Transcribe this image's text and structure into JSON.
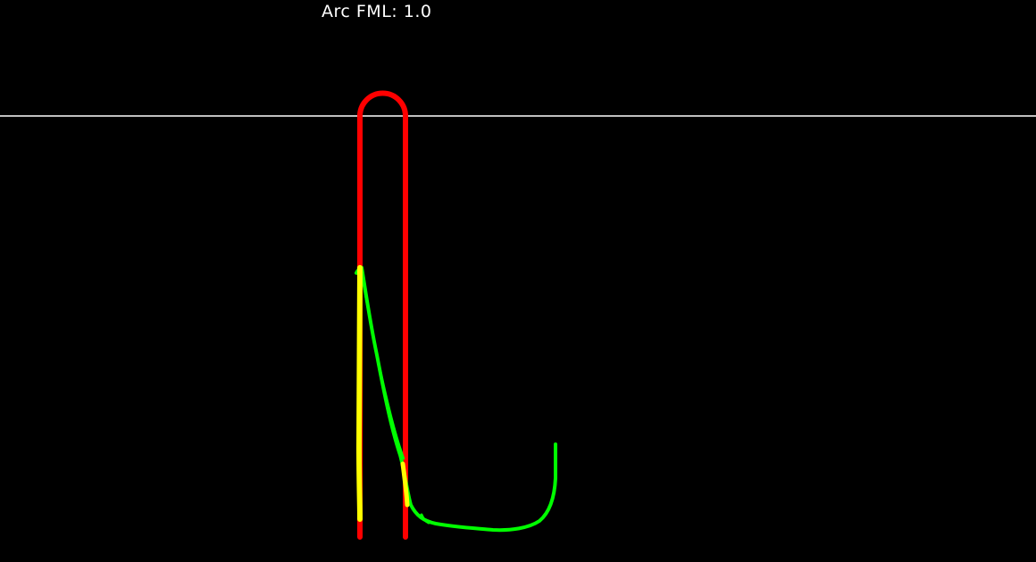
{
  "header": {
    "title": "Arc FML: 1.0"
  },
  "colors": {
    "background": "#000000",
    "reference_line": "#ffffff",
    "probe_outline": "#ff0000",
    "fitted_curve": "#00ff00",
    "overlap_segment": "#ffff00",
    "title_text": "#ffffff"
  }
}
